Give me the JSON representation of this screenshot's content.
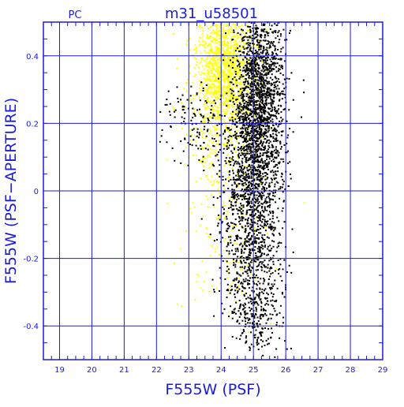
{
  "chart_data": {
    "type": "scatter",
    "title": "m31_u58501",
    "corner_label": "PC",
    "xlabel": "F555W (PSF)",
    "ylabel": "F555W (PSF−APERTURE)",
    "xlim": [
      18.5,
      29.0
    ],
    "ylim": [
      -0.5,
      0.5
    ],
    "x_ticks": [
      19,
      20,
      21,
      22,
      23,
      24,
      25,
      26,
      27,
      28,
      29
    ],
    "y_ticks": [
      -0.4,
      -0.2,
      0,
      0.2,
      0.4
    ],
    "y_tick_labels": [
      "-0.4",
      "-0.2",
      "0",
      "0.2",
      "0.4"
    ],
    "grid": true,
    "axis_color": "#1a1adf",
    "series": [
      {
        "color": "#ffff00",
        "clusters": [
          {
            "x_mean": 24.1,
            "x_sd": 0.45,
            "y_mean": 0.36,
            "y_sd": 0.1,
            "count": 1300
          },
          {
            "x_mean": 24.0,
            "x_sd": 0.6,
            "y_mean": 0.12,
            "y_sd": 0.17,
            "count": 280
          },
          {
            "x_mean": 24.3,
            "x_sd": 0.55,
            "y_mean": -0.2,
            "y_sd": 0.12,
            "count": 80
          }
        ]
      },
      {
        "color": "#000000",
        "clusters": [
          {
            "x_mean": 25.2,
            "x_sd": 0.38,
            "y_mean": 0.28,
            "y_sd": 0.14,
            "count": 1500
          },
          {
            "x_mean": 24.9,
            "x_sd": 0.48,
            "y_mean": 0.05,
            "y_sd": 0.14,
            "count": 1000
          },
          {
            "x_mean": 25.0,
            "x_sd": 0.45,
            "y_mean": -0.22,
            "y_sd": 0.11,
            "count": 500
          },
          {
            "x_mean": 25.1,
            "x_sd": 0.45,
            "y_mean": -0.38,
            "y_sd": 0.05,
            "count": 140
          },
          {
            "x_mean": 23.2,
            "x_sd": 0.5,
            "y_mean": 0.2,
            "y_sd": 0.06,
            "count": 120
          }
        ]
      }
    ]
  }
}
